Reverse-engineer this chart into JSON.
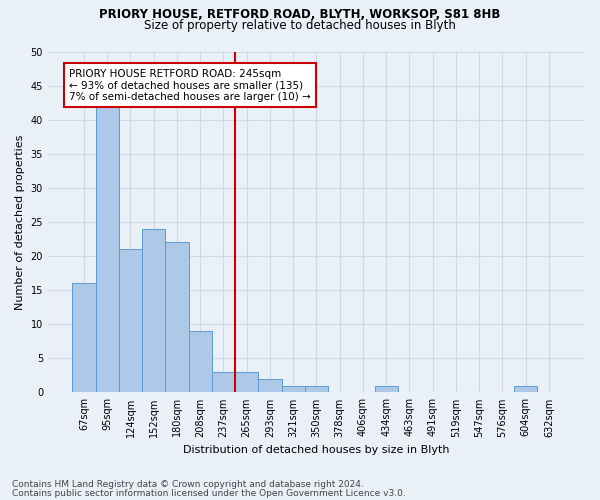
{
  "title1": "PRIORY HOUSE, RETFORD ROAD, BLYTH, WORKSOP, S81 8HB",
  "title2": "Size of property relative to detached houses in Blyth",
  "xlabel": "Distribution of detached houses by size in Blyth",
  "ylabel": "Number of detached properties",
  "footnote1": "Contains HM Land Registry data © Crown copyright and database right 2024.",
  "footnote2": "Contains public sector information licensed under the Open Government Licence v3.0.",
  "bar_labels": [
    "67sqm",
    "95sqm",
    "124sqm",
    "152sqm",
    "180sqm",
    "208sqm",
    "237sqm",
    "265sqm",
    "293sqm",
    "321sqm",
    "350sqm",
    "378sqm",
    "406sqm",
    "434sqm",
    "463sqm",
    "491sqm",
    "519sqm",
    "547sqm",
    "576sqm",
    "604sqm",
    "632sqm"
  ],
  "bar_values": [
    16,
    42,
    21,
    24,
    22,
    9,
    3,
    3,
    2,
    1,
    1,
    0,
    0,
    1,
    0,
    0,
    0,
    0,
    0,
    1,
    0
  ],
  "bar_color": "#aec8e8",
  "bar_edge_color": "#5b9bd5",
  "grid_color": "#d0d8e8",
  "annotation_box_text": "PRIORY HOUSE RETFORD ROAD: 245sqm\n← 93% of detached houses are smaller (135)\n7% of semi-detached houses are larger (10) →",
  "annotation_box_color": "#ffffff",
  "annotation_box_edge_color": "#cc0000",
  "annotation_line_color": "#cc0000",
  "ylim": [
    0,
    50
  ],
  "yticks": [
    0,
    5,
    10,
    15,
    20,
    25,
    30,
    35,
    40,
    45,
    50
  ],
  "bg_color": "#eaf0f8"
}
